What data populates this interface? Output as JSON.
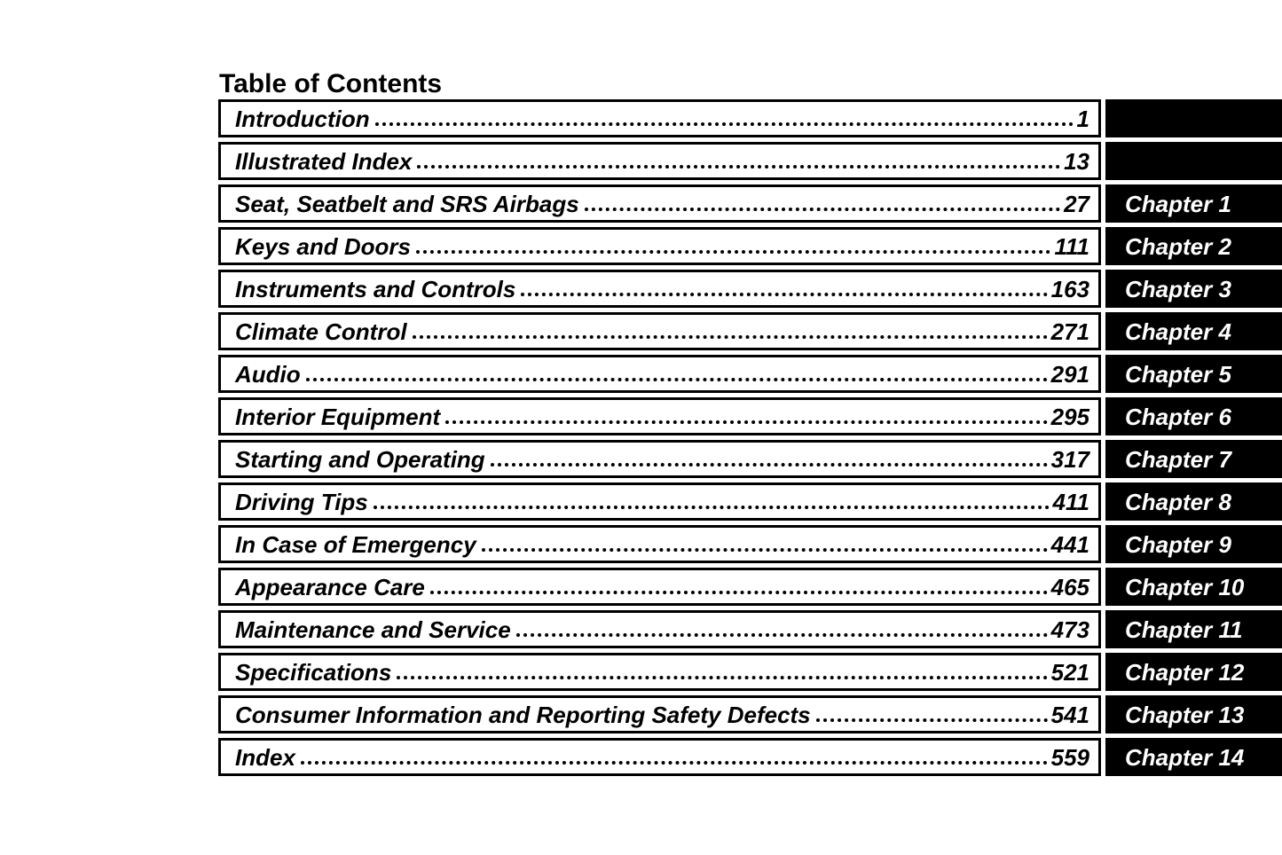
{
  "page_title": "Table of Contents",
  "colors": {
    "background": "#ffffff",
    "text": "#000000",
    "tab_background": "#000000",
    "tab_text": "#ffffff"
  },
  "toc": {
    "rows": [
      {
        "title": "Introduction",
        "page": "1",
        "chapter": ""
      },
      {
        "title": "Illustrated Index",
        "page": "13",
        "chapter": ""
      },
      {
        "title": "Seat, Seatbelt and SRS Airbags",
        "page": "27",
        "chapter": "Chapter 1"
      },
      {
        "title": "Keys and Doors",
        "page": "111",
        "chapter": "Chapter 2"
      },
      {
        "title": "Instruments and Controls",
        "page": "163",
        "chapter": "Chapter 3"
      },
      {
        "title": "Climate Control",
        "page": "271",
        "chapter": "Chapter 4"
      },
      {
        "title": "Audio",
        "page": "291",
        "chapter": "Chapter 5"
      },
      {
        "title": "Interior Equipment",
        "page": "295",
        "chapter": "Chapter 6"
      },
      {
        "title": "Starting and Operating",
        "page": "317",
        "chapter": "Chapter 7"
      },
      {
        "title": "Driving Tips",
        "page": "411",
        "chapter": "Chapter 8"
      },
      {
        "title": "In Case of Emergency",
        "page": "441",
        "chapter": "Chapter 9"
      },
      {
        "title": "Appearance Care",
        "page": "465",
        "chapter": "Chapter 10"
      },
      {
        "title": "Maintenance and Service",
        "page": "473",
        "chapter": "Chapter 11"
      },
      {
        "title": "Specifications",
        "page": "521",
        "chapter": "Chapter 12"
      },
      {
        "title": "Consumer Information and Reporting Safety Defects",
        "page": "541",
        "chapter": "Chapter 13"
      },
      {
        "title": "Index",
        "page": "559",
        "chapter": "Chapter 14"
      }
    ]
  }
}
